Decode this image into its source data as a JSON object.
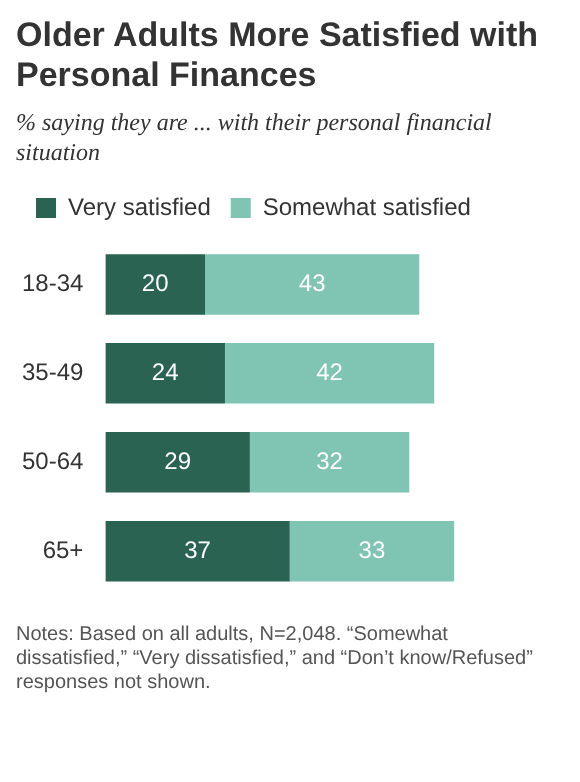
{
  "chart_data": {
    "type": "bar",
    "orientation": "horizontal",
    "stacked": true,
    "title": "Older Adults More Satisfied with Personal Finances",
    "subtitle": "% saying they are ... with their personal financial situation",
    "categories": [
      "18-34",
      "35-49",
      "50-64",
      "65+"
    ],
    "series": [
      {
        "name": "Very satisfied",
        "color": "#2b6352",
        "values": [
          20,
          24,
          29,
          37
        ]
      },
      {
        "name": "Somewhat satisfied",
        "color": "#80c4b3",
        "values": [
          43,
          42,
          32,
          33
        ]
      }
    ],
    "data_labels": true,
    "legend": "top left",
    "grid": false,
    "annotations": [
      "Notes: Based on all adults, N=2,048. “Somewhat dissatisfied,” “Very dissatisfied,” and “Don’t know/Refused” responses not shown."
    ]
  }
}
